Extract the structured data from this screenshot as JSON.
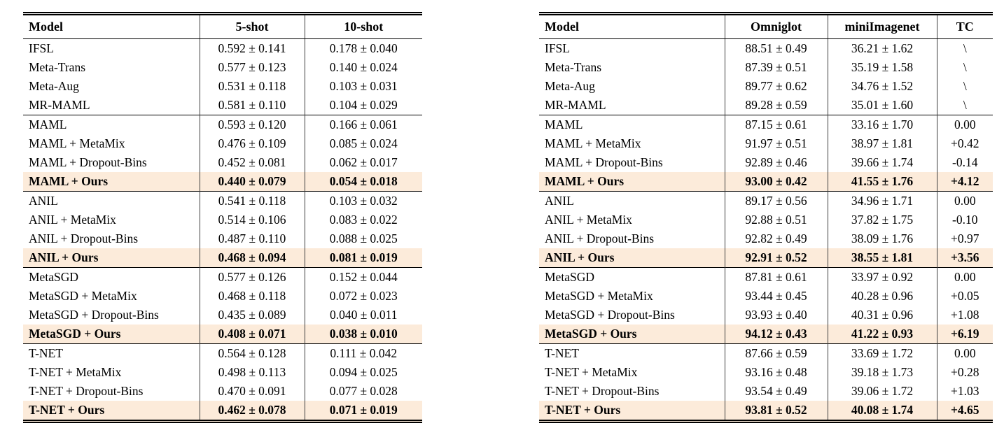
{
  "page": {
    "background_color": "#ffffff",
    "rule_color": "#000000",
    "highlight_color": "#fcebda"
  },
  "left_table": {
    "headers": [
      "Model",
      "5-shot",
      "10-shot"
    ],
    "sections": [
      {
        "rows": [
          {
            "model": "IFSL",
            "values": [
              "0.592 ± 0.141",
              "0.178 ± 0.040"
            ],
            "highlight": false
          },
          {
            "model": "Meta-Trans",
            "values": [
              "0.577 ± 0.123",
              "0.140 ± 0.024"
            ],
            "highlight": false
          },
          {
            "model": "Meta-Aug",
            "values": [
              "0.531 ± 0.118",
              "0.103 ± 0.031"
            ],
            "highlight": false
          },
          {
            "model": "MR-MAML",
            "values": [
              "0.581 ± 0.110",
              "0.104 ± 0.029"
            ],
            "highlight": false
          }
        ]
      },
      {
        "rows": [
          {
            "model": "MAML",
            "values": [
              "0.593 ± 0.120",
              "0.166 ± 0.061"
            ],
            "highlight": false
          },
          {
            "model": "MAML + MetaMix",
            "values": [
              "0.476 ± 0.109",
              "0.085 ± 0.024"
            ],
            "highlight": false
          },
          {
            "model": "MAML + Dropout-Bins",
            "values": [
              "0.452 ± 0.081",
              "0.062 ± 0.017"
            ],
            "highlight": false
          },
          {
            "model": "MAML + Ours",
            "values": [
              "0.440 ± 0.079",
              "0.054 ± 0.018"
            ],
            "highlight": true
          }
        ]
      },
      {
        "rows": [
          {
            "model": "ANIL",
            "values": [
              "0.541 ± 0.118",
              "0.103 ± 0.032"
            ],
            "highlight": false
          },
          {
            "model": "ANIL + MetaMix",
            "values": [
              "0.514 ± 0.106",
              "0.083 ± 0.022"
            ],
            "highlight": false
          },
          {
            "model": "ANIL + Dropout-Bins",
            "values": [
              "0.487 ± 0.110",
              "0.088 ± 0.025"
            ],
            "highlight": false
          },
          {
            "model": "ANIL + Ours",
            "values": [
              "0.468 ± 0.094",
              "0.081 ± 0.019"
            ],
            "highlight": true
          }
        ]
      },
      {
        "rows": [
          {
            "model": "MetaSGD",
            "values": [
              "0.577 ± 0.126",
              "0.152 ± 0.044"
            ],
            "highlight": false
          },
          {
            "model": "MetaSGD + MetaMix",
            "values": [
              "0.468 ± 0.118",
              "0.072 ± 0.023"
            ],
            "highlight": false
          },
          {
            "model": "MetaSGD + Dropout-Bins",
            "values": [
              "0.435 ± 0.089",
              "0.040 ± 0.011"
            ],
            "highlight": false
          },
          {
            "model": "MetaSGD + Ours",
            "values": [
              "0.408 ± 0.071",
              "0.038 ± 0.010"
            ],
            "highlight": true
          }
        ]
      },
      {
        "rows": [
          {
            "model": "T-NET",
            "values": [
              "0.564 ± 0.128",
              "0.111 ± 0.042"
            ],
            "highlight": false
          },
          {
            "model": "T-NET + MetaMix",
            "values": [
              "0.498 ± 0.113",
              "0.094 ± 0.025"
            ],
            "highlight": false
          },
          {
            "model": "T-NET + Dropout-Bins",
            "values": [
              "0.470 ± 0.091",
              "0.077 ± 0.028"
            ],
            "highlight": false
          },
          {
            "model": "T-NET + Ours",
            "values": [
              "0.462 ± 0.078",
              "0.071 ± 0.019"
            ],
            "highlight": true
          }
        ]
      }
    ]
  },
  "right_table": {
    "headers": [
      "Model",
      "Omniglot",
      "miniImagenet",
      "TC"
    ],
    "sections": [
      {
        "rows": [
          {
            "model": "IFSL",
            "values": [
              "88.51 ± 0.49",
              "36.21 ± 1.62",
              "\\"
            ],
            "highlight": false
          },
          {
            "model": "Meta-Trans",
            "values": [
              "87.39 ± 0.51",
              "35.19 ± 1.58",
              "\\"
            ],
            "highlight": false
          },
          {
            "model": "Meta-Aug",
            "values": [
              "89.77 ± 0.62",
              "34.76 ± 1.52",
              "\\"
            ],
            "highlight": false
          },
          {
            "model": "MR-MAML",
            "values": [
              "89.28 ± 0.59",
              "35.01 ± 1.60",
              "\\"
            ],
            "highlight": false
          }
        ]
      },
      {
        "rows": [
          {
            "model": "MAML",
            "values": [
              "87.15 ± 0.61",
              "33.16 ± 1.70",
              "0.00"
            ],
            "highlight": false
          },
          {
            "model": "MAML + MetaMix",
            "values": [
              "91.97 ± 0.51",
              "38.97 ± 1.81",
              "+0.42"
            ],
            "highlight": false
          },
          {
            "model": "MAML + Dropout-Bins",
            "values": [
              "92.89 ± 0.46",
              "39.66 ± 1.74",
              "-0.14"
            ],
            "highlight": false
          },
          {
            "model": "MAML + Ours",
            "values": [
              "93.00 ± 0.42",
              "41.55 ± 1.76",
              "+4.12"
            ],
            "highlight": true
          }
        ]
      },
      {
        "rows": [
          {
            "model": "ANIL",
            "values": [
              "89.17 ± 0.56",
              "34.96 ± 1.71",
              "0.00"
            ],
            "highlight": false
          },
          {
            "model": "ANIL + MetaMix",
            "values": [
              "92.88 ± 0.51",
              "37.82 ± 1.75",
              "-0.10"
            ],
            "highlight": false
          },
          {
            "model": "ANIL + Dropout-Bins",
            "values": [
              "92.82 ± 0.49",
              "38.09 ± 1.76",
              "+0.97"
            ],
            "highlight": false
          },
          {
            "model": "ANIL + Ours",
            "values": [
              "92.91 ± 0.52",
              "38.55 ± 1.81",
              "+3.56"
            ],
            "highlight": true
          }
        ]
      },
      {
        "rows": [
          {
            "model": "MetaSGD",
            "values": [
              "87.81 ± 0.61",
              "33.97 ± 0.92",
              "0.00"
            ],
            "highlight": false
          },
          {
            "model": "MetaSGD + MetaMix",
            "values": [
              "93.44 ± 0.45",
              "40.28 ± 0.96",
              "+0.05"
            ],
            "highlight": false
          },
          {
            "model": "MetaSGD + Dropout-Bins",
            "values": [
              "93.93 ± 0.40",
              "40.31 ± 0.96",
              "+1.08"
            ],
            "highlight": false
          },
          {
            "model": "MetaSGD + Ours",
            "values": [
              "94.12 ± 0.43",
              "41.22 ± 0.93",
              "+6.19"
            ],
            "highlight": true
          }
        ]
      },
      {
        "rows": [
          {
            "model": "T-NET",
            "values": [
              "87.66 ± 0.59",
              "33.69 ± 1.72",
              "0.00"
            ],
            "highlight": false
          },
          {
            "model": "T-NET + MetaMix",
            "values": [
              "93.16 ± 0.48",
              "39.18 ± 1.73",
              "+0.28"
            ],
            "highlight": false
          },
          {
            "model": "T-NET + Dropout-Bins",
            "values": [
              "93.54 ± 0.49",
              "39.06 ± 1.72",
              "+1.03"
            ],
            "highlight": false
          },
          {
            "model": "T-NET + Ours",
            "values": [
              "93.81 ± 0.52",
              "40.08 ± 1.74",
              "+4.65"
            ],
            "highlight": true
          }
        ]
      }
    ]
  }
}
